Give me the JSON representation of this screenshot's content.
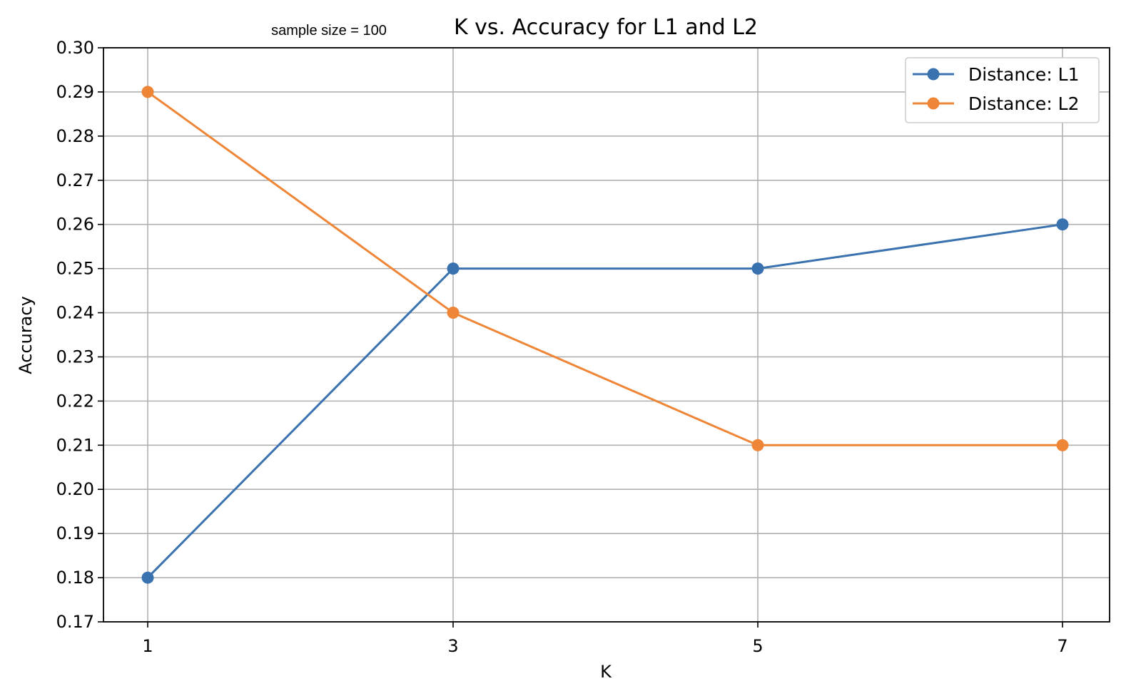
{
  "chart_data": {
    "type": "line",
    "title": "K vs. Accuracy for L1 and L2",
    "subtitle": "sample size = 100",
    "xlabel": "K",
    "ylabel": "Accuracy",
    "x": [
      1,
      3,
      5,
      7
    ],
    "xticks": [
      "1",
      "3",
      "5",
      "7"
    ],
    "ylim": [
      0.17,
      0.3
    ],
    "yticks": [
      "0.17",
      "0.18",
      "0.19",
      "0.20",
      "0.21",
      "0.22",
      "0.23",
      "0.24",
      "0.25",
      "0.26",
      "0.27",
      "0.28",
      "0.29",
      "0.30"
    ],
    "grid": true,
    "legend_position": "top-right",
    "series": [
      {
        "name": "Distance: L1",
        "color": "#3a72b0",
        "values": [
          0.18,
          0.25,
          0.25,
          0.26
        ]
      },
      {
        "name": "Distance: L2",
        "color": "#ef8536",
        "values": [
          0.29,
          0.24,
          0.21,
          0.21
        ]
      }
    ]
  }
}
